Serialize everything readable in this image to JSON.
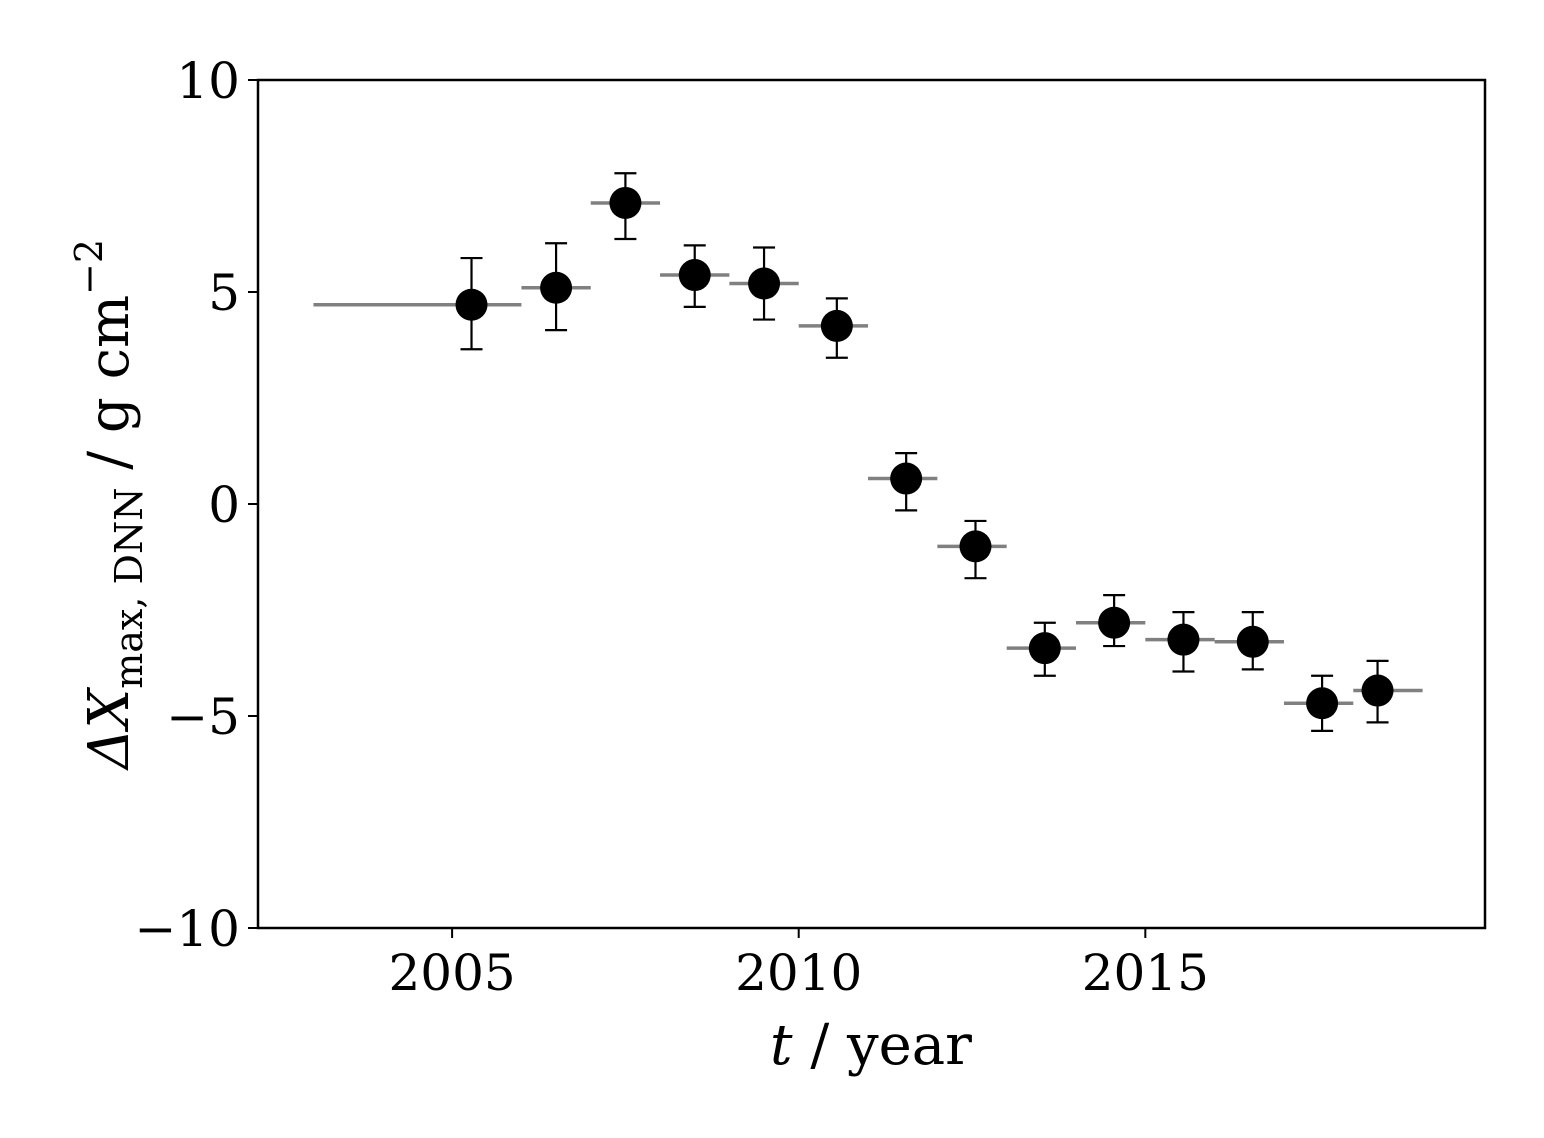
{
  "chart_data": {
    "type": "scatter",
    "title": "",
    "xlabel": {
      "symbol": "t",
      "rest": " / year"
    },
    "ylabel": {
      "delta": "Δ",
      "symbol": "X",
      "subscript": "max, DNN",
      "units": " / g cm",
      "exponent": "−2"
    },
    "xlim": [
      2002.2,
      2019.9
    ],
    "ylim": [
      -10,
      10
    ],
    "xticks": [
      2005,
      2010,
      2015
    ],
    "xtick_labels": [
      "2005",
      "2010",
      "2015"
    ],
    "yticks": [
      10,
      5,
      0,
      -5,
      -10
    ],
    "ytick_labels": [
      "10",
      "5",
      "0",
      "−5",
      "−10"
    ],
    "grid": false,
    "legend": "none",
    "colors": {
      "marker": "#000000",
      "xerr": "#808080",
      "yerr": "#000000"
    },
    "points": [
      {
        "x": 2005.28,
        "y": 4.7,
        "xlo": 2003.0,
        "xhi": 2006.0,
        "ylo": 3.65,
        "yhi": 5.8
      },
      {
        "x": 2006.5,
        "y": 5.1,
        "xlo": 2006.0,
        "xhi": 2007.0,
        "ylo": 4.1,
        "yhi": 6.15
      },
      {
        "x": 2007.5,
        "y": 7.1,
        "xlo": 2007.0,
        "xhi": 2008.0,
        "ylo": 6.25,
        "yhi": 7.8
      },
      {
        "x": 2008.5,
        "y": 5.4,
        "xlo": 2008.0,
        "xhi": 2009.0,
        "ylo": 4.65,
        "yhi": 6.1
      },
      {
        "x": 2009.5,
        "y": 5.2,
        "xlo": 2009.0,
        "xhi": 2010.0,
        "ylo": 4.35,
        "yhi": 6.05
      },
      {
        "x": 2010.55,
        "y": 4.2,
        "xlo": 2010.0,
        "xhi": 2011.0,
        "ylo": 3.45,
        "yhi": 4.85
      },
      {
        "x": 2011.55,
        "y": 0.6,
        "xlo": 2011.0,
        "xhi": 2012.0,
        "ylo": -0.15,
        "yhi": 1.2
      },
      {
        "x": 2012.55,
        "y": -1.0,
        "xlo": 2012.0,
        "xhi": 2013.0,
        "ylo": -1.75,
        "yhi": -0.4
      },
      {
        "x": 2013.55,
        "y": -3.4,
        "xlo": 2013.0,
        "xhi": 2014.0,
        "ylo": -4.05,
        "yhi": -2.8
      },
      {
        "x": 2014.55,
        "y": -2.8,
        "xlo": 2014.0,
        "xhi": 2015.0,
        "ylo": -3.35,
        "yhi": -2.15
      },
      {
        "x": 2015.55,
        "y": -3.2,
        "xlo": 2015.0,
        "xhi": 2016.0,
        "ylo": -3.95,
        "yhi": -2.55
      },
      {
        "x": 2016.55,
        "y": -3.25,
        "xlo": 2016.0,
        "xhi": 2017.0,
        "ylo": -3.9,
        "yhi": -2.55
      },
      {
        "x": 2017.55,
        "y": -4.7,
        "xlo": 2017.0,
        "xhi": 2018.0,
        "ylo": -5.35,
        "yhi": -4.05
      },
      {
        "x": 2018.35,
        "y": -4.4,
        "xlo": 2018.0,
        "xhi": 2019.0,
        "ylo": -5.15,
        "yhi": -3.7
      }
    ]
  }
}
